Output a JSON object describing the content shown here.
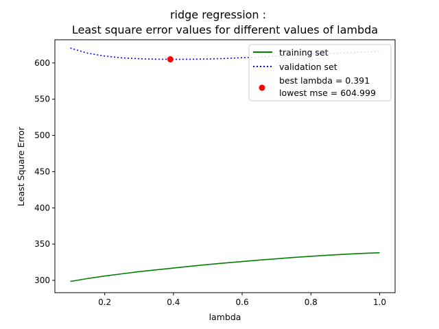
{
  "chart_data": {
    "type": "line",
    "title_line1": "ridge regression :",
    "title_line2": "Least square error values for different values of lambda",
    "xlabel": "lambda",
    "ylabel": "Least Square Error",
    "xlim": [
      0.055,
      1.045
    ],
    "ylim": [
      283,
      632
    ],
    "xticks": [
      0.2,
      0.4,
      0.6,
      0.8,
      1.0
    ],
    "xtick_labels": [
      "0.2",
      "0.4",
      "0.6",
      "0.8",
      "1.0"
    ],
    "yticks": [
      300,
      350,
      400,
      450,
      500,
      550,
      600
    ],
    "ytick_labels": [
      "300",
      "350",
      "400",
      "450",
      "500",
      "550",
      "600"
    ],
    "grid": false,
    "legend_position": "top-right",
    "series": [
      {
        "name": "training set",
        "color": "#008000",
        "style": "solid",
        "x": [
          0.1,
          0.15,
          0.2,
          0.25,
          0.3,
          0.35,
          0.4,
          0.45,
          0.5,
          0.55,
          0.6,
          0.65,
          0.7,
          0.75,
          0.8,
          0.85,
          0.9,
          0.95,
          1.0
        ],
        "y": [
          298.5,
          302.5,
          306.0,
          309.0,
          312.0,
          314.5,
          317.0,
          319.5,
          321.8,
          324.0,
          326.0,
          328.0,
          329.8,
          331.6,
          333.2,
          334.7,
          336.0,
          337.2,
          338.2
        ]
      },
      {
        "name": "validation set",
        "color": "#0000ff",
        "style": "dotted",
        "x": [
          0.1,
          0.15,
          0.2,
          0.25,
          0.3,
          0.35,
          0.4,
          0.45,
          0.5,
          0.55,
          0.6,
          0.65,
          0.7,
          0.75,
          0.8,
          0.85,
          0.9,
          0.95,
          1.0
        ],
        "y": [
          620.5,
          613.5,
          609.5,
          607.0,
          605.8,
          605.2,
          605.0,
          605.1,
          605.5,
          606.2,
          607.2,
          608.3,
          609.5,
          610.7,
          611.9,
          613.0,
          614.0,
          615.0,
          615.8
        ]
      }
    ],
    "highlight_point": {
      "x": 0.391,
      "y": 604.999,
      "color": "#ff0000",
      "legend_line1": "best lambda = 0.391",
      "legend_line2": "lowest mse = 604.999"
    }
  }
}
